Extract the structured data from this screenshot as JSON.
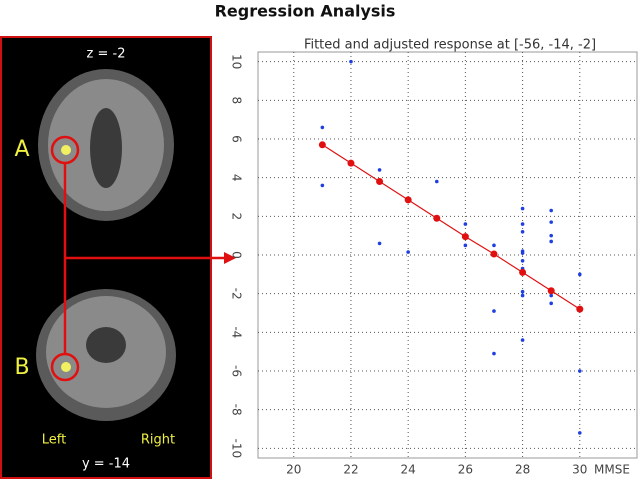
{
  "title": "Regression Analysis",
  "brain_panel": {
    "axial_label": "z = -2",
    "marker_a": "A",
    "marker_b": "B",
    "left_label": "Left",
    "right_label": "Right",
    "coronal_label": "y = -14"
  },
  "chart_data": {
    "type": "scatter",
    "title": "Fitted and adjusted response at [-56, -14, -2]",
    "x_label": "MMSE",
    "xlim": [
      18.75,
      32
    ],
    "xticks": [
      20,
      22,
      24,
      26,
      28,
      30
    ],
    "ylim": [
      -10.5,
      10.5
    ],
    "yticks": [
      -10,
      -8,
      -6,
      -4,
      -2,
      0,
      2,
      4,
      6,
      8,
      10
    ],
    "grid": true,
    "series": [
      {
        "color": "#1f3fe0",
        "marker": "dot",
        "x": [
          21,
          21,
          22,
          23,
          23,
          24,
          25,
          26,
          26,
          27,
          27,
          27,
          28,
          28,
          28,
          28,
          28,
          28,
          28,
          28,
          28,
          28,
          29,
          29,
          29,
          29,
          29,
          29,
          30,
          30,
          30
        ],
        "values": [
          6.6,
          3.6,
          10,
          4.4,
          0.6,
          0.15,
          3.8,
          1.6,
          0.5,
          0.5,
          -2.9,
          -5.1,
          2.4,
          1.6,
          1.2,
          0.2,
          0.1,
          -0.3,
          -0.7,
          -1.9,
          -2.1,
          -4.4,
          2.3,
          1.7,
          1.0,
          0.7,
          -2.1,
          -2.5,
          -1.0,
          -6.0,
          -9.2
        ]
      },
      {
        "color": "#e01010",
        "marker": "line",
        "x": [
          21,
          22,
          23,
          24,
          25,
          26,
          27,
          28,
          29,
          30
        ],
        "values": [
          5.7,
          4.75,
          3.8,
          2.85,
          1.9,
          0.95,
          0.05,
          -0.9,
          -1.85,
          -2.8
        ]
      }
    ]
  }
}
